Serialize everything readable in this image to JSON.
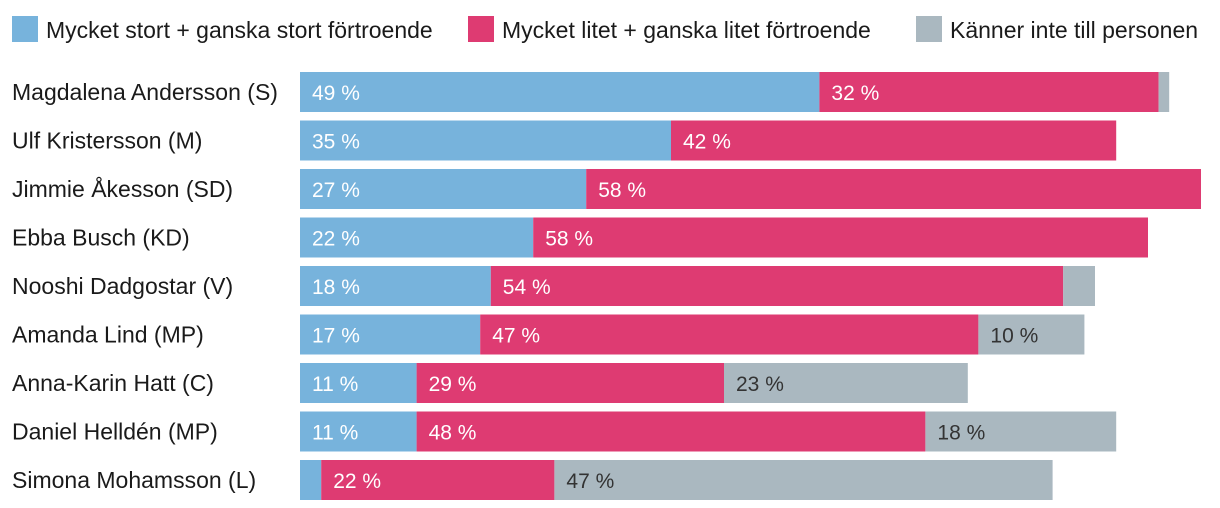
{
  "chart_data": {
    "type": "bar",
    "orientation": "horizontal",
    "stacked": true,
    "title": "",
    "xlabel": "",
    "ylabel": "",
    "legend_position": "top",
    "grid": false,
    "value_suffix": " %",
    "categories": [
      "Magdalena Andersson (S)",
      "Ulf Kristersson (M)",
      "Jimmie Åkesson (SD)",
      "Ebba Busch (KD)",
      "Nooshi Dadgostar (V)",
      "Amanda Lind (MP)",
      "Anna-Karin Hatt (C)",
      "Daniel Helldén (MP)",
      "Simona Mohamsson (L)"
    ],
    "series": [
      {
        "name": "Mycket stort + ganska stort förtroende",
        "color": "#77b3dc",
        "values": [
          49,
          35,
          27,
          22,
          18,
          17,
          11,
          11,
          2
        ],
        "labels": [
          "49 %",
          "35 %",
          "27 %",
          "22 %",
          "18 %",
          "17 %",
          "11 %",
          "11 %",
          ""
        ]
      },
      {
        "name": "Mycket litet + ganska litet förtroende",
        "color": "#de3b72",
        "values": [
          32,
          42,
          58,
          58,
          54,
          47,
          29,
          48,
          22
        ],
        "labels": [
          "32 %",
          "42 %",
          "58 %",
          "58 %",
          "54 %",
          "47 %",
          "29 %",
          "48 %",
          "22 %"
        ]
      },
      {
        "name": "Känner inte till personen",
        "color": "#aab8c0",
        "values": [
          1,
          0,
          0,
          0,
          3,
          10,
          23,
          18,
          47
        ],
        "labels": [
          "",
          "",
          "",
          "",
          "",
          "10 %",
          "23 %",
          "18 %",
          "47 %"
        ]
      }
    ]
  }
}
